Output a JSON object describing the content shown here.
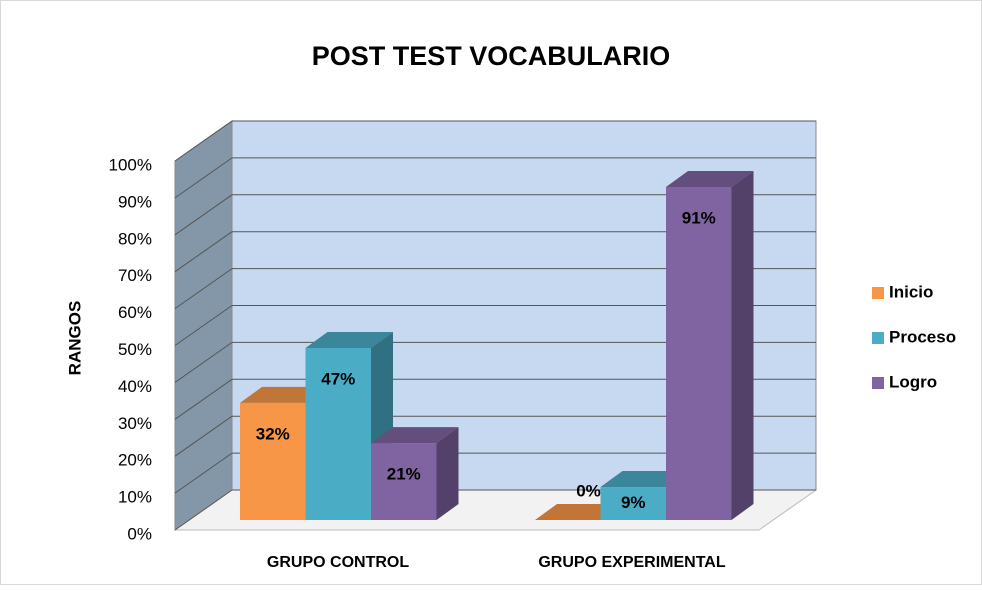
{
  "chart_data": {
    "type": "bar3d",
    "title": "POST TEST VOCABULARIO",
    "y_label": "RANGOS",
    "categories": [
      "GRUPO CONTROL",
      "GRUPO EXPERIMENTAL"
    ],
    "series": [
      {
        "name": "Inicio",
        "color": "#f79646",
        "values": [
          32,
          0
        ],
        "value_labels": [
          "32%",
          "0%"
        ]
      },
      {
        "name": "Proceso",
        "color": "#4bacc6",
        "values": [
          47,
          9
        ],
        "value_labels": [
          "47%",
          "9%"
        ]
      },
      {
        "name": "Logro",
        "color": "#8064a2",
        "values": [
          21,
          91
        ],
        "value_labels": [
          "21%",
          "91%"
        ]
      }
    ],
    "ylim": [
      0,
      100
    ],
    "yticks": [
      {
        "value": 0,
        "label": "0%"
      },
      {
        "value": 10,
        "label": "10%"
      },
      {
        "value": 20,
        "label": "20%"
      },
      {
        "value": 30,
        "label": "30%"
      },
      {
        "value": 40,
        "label": "40%"
      },
      {
        "value": 50,
        "label": "50%"
      },
      {
        "value": 60,
        "label": "60%"
      },
      {
        "value": 70,
        "label": "70%"
      },
      {
        "value": 80,
        "label": "80%"
      },
      {
        "value": 90,
        "label": "90%"
      },
      {
        "value": 100,
        "label": "100%"
      }
    ],
    "grid": true,
    "legend": "right"
  }
}
